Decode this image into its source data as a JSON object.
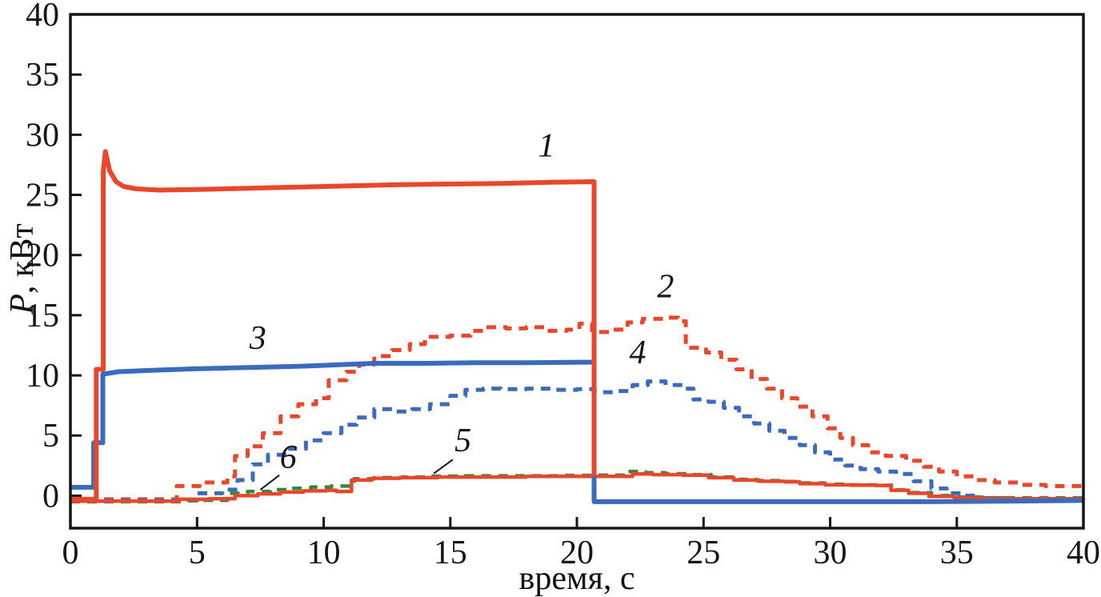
{
  "figure": {
    "xlabel": "время, с",
    "ylabel_italic": "P",
    "ylabel_rest": ", кВт"
  },
  "chart_data": {
    "type": "line",
    "title": "",
    "xlabel": "время, с",
    "ylabel": "P, кВт",
    "xlim": [
      0,
      40
    ],
    "ylim": [
      -2.7,
      40
    ],
    "x_ticks": [
      0,
      5,
      10,
      15,
      20,
      25,
      30,
      35,
      40
    ],
    "y_ticks": [
      0,
      5,
      10,
      15,
      20,
      25,
      30,
      35,
      40
    ],
    "grid": false,
    "legend": "numbered in-plot labels",
    "colors": {
      "red": "#e8472b",
      "blue": "#3a6bbd",
      "green": "#2f8b3b",
      "axis": "#161616"
    },
    "series": [
      {
        "label": "2",
        "name": "curve-2-red-dashed",
        "color": "red",
        "dash": true,
        "step": true,
        "width": 5,
        "points": [
          [
            0,
            -0.3
          ],
          [
            4.2,
            0.8
          ],
          [
            5.1,
            1.1
          ],
          [
            6.2,
            1.6
          ],
          [
            6.5,
            3.3
          ],
          [
            7.0,
            4.1
          ],
          [
            7.6,
            5.2
          ],
          [
            8.3,
            6.6
          ],
          [
            9.0,
            7.6
          ],
          [
            9.7,
            8.1
          ],
          [
            10.2,
            9.6
          ],
          [
            10.9,
            10.3
          ],
          [
            11.4,
            10.9
          ],
          [
            12.0,
            11.6
          ],
          [
            12.7,
            12.1
          ],
          [
            13.4,
            12.6
          ],
          [
            14.0,
            13.2
          ],
          [
            15.0,
            13.3
          ],
          [
            15.8,
            13.7
          ],
          [
            16.4,
            14.0
          ],
          [
            17.2,
            13.9
          ],
          [
            18.0,
            14.0
          ],
          [
            18.8,
            13.7
          ],
          [
            19.6,
            13.8
          ],
          [
            20.1,
            14.3
          ],
          [
            20.6,
            13.6
          ],
          [
            21.3,
            13.8
          ],
          [
            22.0,
            14.4
          ],
          [
            22.6,
            14.7
          ],
          [
            23.4,
            14.8
          ],
          [
            24.0,
            14.5
          ],
          [
            24.3,
            12.3
          ],
          [
            25.1,
            11.9
          ],
          [
            25.7,
            11.3
          ],
          [
            26.3,
            10.5
          ],
          [
            26.9,
            9.7
          ],
          [
            27.5,
            8.9
          ],
          [
            28.1,
            8.1
          ],
          [
            28.7,
            7.4
          ],
          [
            29.3,
            6.6
          ],
          [
            29.9,
            5.6
          ],
          [
            30.4,
            4.8
          ],
          [
            30.9,
            4.2
          ],
          [
            31.5,
            3.6
          ],
          [
            32.2,
            3.3
          ],
          [
            33.0,
            2.9
          ],
          [
            33.7,
            2.4
          ],
          [
            34.3,
            2.0
          ],
          [
            35.0,
            1.6
          ],
          [
            35.7,
            1.3
          ],
          [
            36.5,
            1.1
          ],
          [
            37.5,
            0.9
          ],
          [
            38.5,
            0.8
          ],
          [
            40,
            0.8
          ]
        ]
      },
      {
        "label": "4",
        "name": "curve-4-blue-dashed",
        "color": "blue",
        "dash": true,
        "step": true,
        "width": 5,
        "points": [
          [
            0,
            -0.4
          ],
          [
            5.0,
            0.2
          ],
          [
            6.0,
            0.5
          ],
          [
            6.6,
            1.3
          ],
          [
            7.2,
            2.6
          ],
          [
            7.8,
            3.4
          ],
          [
            8.6,
            3.9
          ],
          [
            9.3,
            4.6
          ],
          [
            10.0,
            5.2
          ],
          [
            10.7,
            5.9
          ],
          [
            11.3,
            6.5
          ],
          [
            12.0,
            7.2
          ],
          [
            12.8,
            7.0
          ],
          [
            13.5,
            7.2
          ],
          [
            14.2,
            7.6
          ],
          [
            15.0,
            8.3
          ],
          [
            15.6,
            8.8
          ],
          [
            16.3,
            8.9
          ],
          [
            17.0,
            8.85
          ],
          [
            18.0,
            8.9
          ],
          [
            19.0,
            8.8
          ],
          [
            20.0,
            8.85
          ],
          [
            20.7,
            8.6
          ],
          [
            21.5,
            8.7
          ],
          [
            22.2,
            9.2
          ],
          [
            22.8,
            9.5
          ],
          [
            23.5,
            9.2
          ],
          [
            24.2,
            8.9
          ],
          [
            24.6,
            8.0
          ],
          [
            25.2,
            7.8
          ],
          [
            25.8,
            7.3
          ],
          [
            26.4,
            6.6
          ],
          [
            27.0,
            6.0
          ],
          [
            27.6,
            5.4
          ],
          [
            28.2,
            4.8
          ],
          [
            28.8,
            4.2
          ],
          [
            29.4,
            3.6
          ],
          [
            30.0,
            3.0
          ],
          [
            30.6,
            2.5
          ],
          [
            31.2,
            2.2
          ],
          [
            31.9,
            2.0
          ],
          [
            32.6,
            1.8
          ],
          [
            33.3,
            1.2
          ],
          [
            34.0,
            0.6
          ],
          [
            34.6,
            0.2
          ],
          [
            35.2,
            0.0
          ],
          [
            36.0,
            -0.2
          ],
          [
            37.0,
            -0.3
          ],
          [
            38.0,
            -0.3
          ],
          [
            39.0,
            -0.35
          ],
          [
            40,
            -0.35
          ]
        ]
      },
      {
        "label": "6",
        "name": "curve-6-green-dashed",
        "color": "green",
        "dash": true,
        "step": true,
        "width": 4.5,
        "points": [
          [
            0,
            -0.5
          ],
          [
            4.6,
            -0.38
          ],
          [
            6.2,
            0.2
          ],
          [
            7.0,
            0.35
          ],
          [
            7.9,
            0.5
          ],
          [
            8.7,
            0.62
          ],
          [
            9.5,
            0.72
          ],
          [
            10.3,
            0.8
          ],
          [
            11.2,
            1.4
          ],
          [
            12.0,
            1.5
          ],
          [
            13.1,
            1.55
          ],
          [
            14.2,
            1.62
          ],
          [
            15.6,
            1.65
          ],
          [
            17.5,
            1.65
          ],
          [
            19.5,
            1.68
          ],
          [
            20.8,
            1.7
          ],
          [
            22.0,
            2.0
          ],
          [
            22.7,
            1.9
          ],
          [
            23.5,
            1.82
          ],
          [
            24.4,
            1.75
          ],
          [
            25.3,
            1.55
          ],
          [
            26.2,
            1.35
          ],
          [
            27.1,
            1.25
          ],
          [
            28.1,
            1.18
          ],
          [
            28.8,
            1.05
          ],
          [
            29.8,
            0.95
          ],
          [
            30.8,
            0.9
          ],
          [
            31.8,
            0.86
          ],
          [
            32.5,
            0.48
          ],
          [
            33.2,
            0.25
          ],
          [
            34.0,
            0.0
          ],
          [
            35.0,
            -0.12
          ],
          [
            36.2,
            -0.18
          ],
          [
            38.0,
            -0.18
          ],
          [
            40,
            -0.15
          ]
        ]
      },
      {
        "label": "5",
        "name": "curve-5-red-solid-low",
        "color": "red",
        "dash": false,
        "step": true,
        "width": 4.5,
        "points": [
          [
            0,
            -0.45
          ],
          [
            4.3,
            -0.3
          ],
          [
            5.5,
            -0.25
          ],
          [
            6.5,
            0.0
          ],
          [
            7.4,
            0.15
          ],
          [
            8.3,
            0.3
          ],
          [
            9.2,
            0.4
          ],
          [
            10.1,
            0.45
          ],
          [
            10.5,
            0.35
          ],
          [
            11.1,
            1.3
          ],
          [
            11.9,
            1.45
          ],
          [
            13.0,
            1.5
          ],
          [
            14.5,
            1.55
          ],
          [
            16.0,
            1.55
          ],
          [
            18.0,
            1.6
          ],
          [
            20.0,
            1.6
          ],
          [
            21.4,
            1.6
          ],
          [
            22.2,
            1.8
          ],
          [
            23.0,
            1.75
          ],
          [
            24.2,
            1.7
          ],
          [
            25.2,
            1.5
          ],
          [
            26.2,
            1.3
          ],
          [
            27.2,
            1.2
          ],
          [
            28.2,
            1.15
          ],
          [
            28.8,
            1.0
          ],
          [
            29.8,
            0.9
          ],
          [
            30.8,
            0.88
          ],
          [
            31.8,
            0.85
          ],
          [
            32.4,
            0.45
          ],
          [
            33.1,
            0.2
          ],
          [
            33.9,
            -0.05
          ],
          [
            34.9,
            -0.18
          ],
          [
            36.0,
            -0.25
          ],
          [
            38.0,
            -0.25
          ],
          [
            40,
            -0.22
          ]
        ]
      },
      {
        "label": "3",
        "name": "curve-3-blue-solid",
        "color": "blue",
        "dash": false,
        "step": false,
        "width": 6,
        "points": [
          [
            0,
            0.7
          ],
          [
            0.92,
            0.7
          ],
          [
            0.92,
            4.4
          ],
          [
            1.28,
            4.4
          ],
          [
            1.28,
            10.1
          ],
          [
            1.9,
            10.3
          ],
          [
            3.0,
            10.4
          ],
          [
            5.0,
            10.55
          ],
          [
            7.0,
            10.65
          ],
          [
            9.0,
            10.75
          ],
          [
            10.8,
            10.9
          ],
          [
            12.0,
            11.0
          ],
          [
            14.0,
            11.0
          ],
          [
            16.0,
            11.05
          ],
          [
            18.0,
            11.05
          ],
          [
            20.68,
            11.1
          ],
          [
            20.68,
            -0.5
          ],
          [
            25.0,
            -0.5
          ],
          [
            30.0,
            -0.5
          ],
          [
            34.0,
            -0.5
          ],
          [
            37.0,
            -0.45
          ],
          [
            40,
            -0.4
          ]
        ]
      },
      {
        "label": "1",
        "name": "curve-1-red-solid",
        "color": "red",
        "dash": false,
        "step": false,
        "width": 6,
        "points": [
          [
            0,
            -0.3
          ],
          [
            1.02,
            -0.3
          ],
          [
            1.02,
            10.5
          ],
          [
            1.3,
            10.5
          ],
          [
            1.3,
            27.0
          ],
          [
            1.38,
            28.6
          ],
          [
            1.55,
            27.0
          ],
          [
            1.8,
            26.1
          ],
          [
            2.1,
            25.7
          ],
          [
            2.6,
            25.5
          ],
          [
            3.5,
            25.4
          ],
          [
            5.0,
            25.45
          ],
          [
            7.0,
            25.55
          ],
          [
            9.0,
            25.65
          ],
          [
            11.0,
            25.75
          ],
          [
            13.0,
            25.85
          ],
          [
            15.0,
            25.9
          ],
          [
            17.0,
            25.95
          ],
          [
            19.0,
            26.05
          ],
          [
            20.68,
            26.1
          ],
          [
            20.68,
            1.6
          ]
        ]
      }
    ],
    "annotations": [
      {
        "text": "1",
        "x": 18.8,
        "y": 28.2
      },
      {
        "text": "2",
        "x": 23.5,
        "y": 16.5
      },
      {
        "text": "3",
        "x": 7.4,
        "y": 12.2
      },
      {
        "text": "4",
        "x": 22.4,
        "y": 11.0
      },
      {
        "text": "5",
        "x": 15.5,
        "y": 3.7,
        "leader": [
          [
            15.1,
            3.0
          ],
          [
            14.35,
            1.85
          ]
        ]
      },
      {
        "text": "6",
        "x": 8.6,
        "y": 2.3,
        "leader": [
          [
            8.25,
            1.7
          ],
          [
            7.5,
            0.5
          ]
        ]
      }
    ]
  }
}
